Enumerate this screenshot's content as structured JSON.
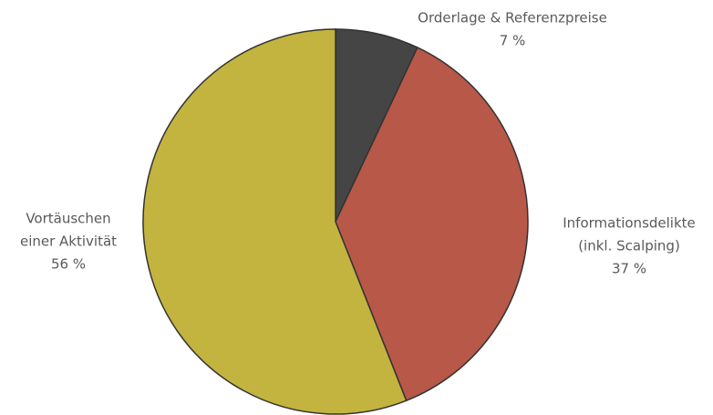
{
  "chart_data": {
    "type": "pie",
    "categories": [
      [
        "Orderlage & Referenzpreise"
      ],
      [
        "Informationsdelikte",
        "(inkl. Scalping)"
      ],
      [
        "Vortäuschen",
        "einer Aktivität"
      ]
    ],
    "values": [
      7,
      37,
      56
    ],
    "value_labels": [
      "7 %",
      "37 %",
      "56 %"
    ],
    "colors": [
      "#454545",
      "#b85848",
      "#c2b43f"
    ]
  }
}
